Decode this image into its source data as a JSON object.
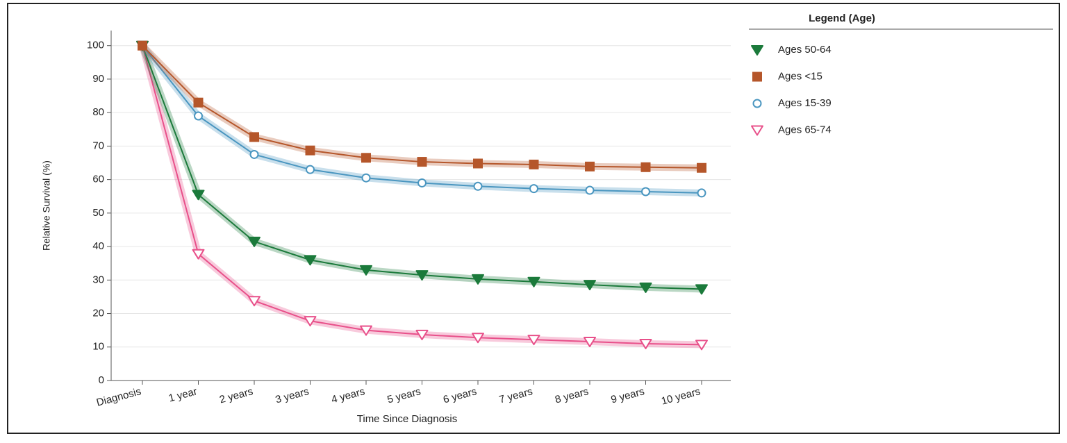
{
  "chart_data": {
    "type": "line",
    "ylabel": "Relative Survival (%)",
    "xlabel": "Time Since Diagnosis",
    "legend_title": "Legend (Age)",
    "categories": [
      "Diagnosis",
      "1 year",
      "2 years",
      "3 years",
      "4 years",
      "5 years",
      "6 years",
      "7 years",
      "8 years",
      "9 years",
      "10 years"
    ],
    "ylim": [
      0,
      104.5
    ],
    "yticks": [
      0,
      10,
      20,
      30,
      40,
      50,
      60,
      70,
      80,
      90,
      100
    ],
    "grid": true,
    "legend": "right",
    "series": [
      {
        "name": "Ages 50-64",
        "color": "#1b7a3b",
        "marker": "triangle-down",
        "filled": true,
        "values": [
          100,
          55.5,
          41.5,
          36,
          33,
          31.5,
          30.3,
          29.5,
          28.6,
          27.8,
          27.3
        ]
      },
      {
        "name": "Ages <15",
        "color": "#b5562a",
        "marker": "square",
        "filled": true,
        "values": [
          100,
          83,
          72.7,
          68.7,
          66.5,
          65.3,
          64.8,
          64.5,
          63.9,
          63.7,
          63.5
        ]
      },
      {
        "name": "Ages 15-39",
        "color": "#4a96c0",
        "marker": "circle",
        "filled": false,
        "values": [
          100,
          79,
          67.5,
          63,
          60.5,
          59,
          58,
          57.3,
          56.8,
          56.4,
          56
        ]
      },
      {
        "name": "Ages 65-74",
        "color": "#e8508a",
        "marker": "triangle-down",
        "filled": false,
        "values": [
          100,
          37.8,
          23.8,
          17.8,
          15,
          13.7,
          12.8,
          12.2,
          11.6,
          11,
          10.7
        ]
      }
    ]
  }
}
